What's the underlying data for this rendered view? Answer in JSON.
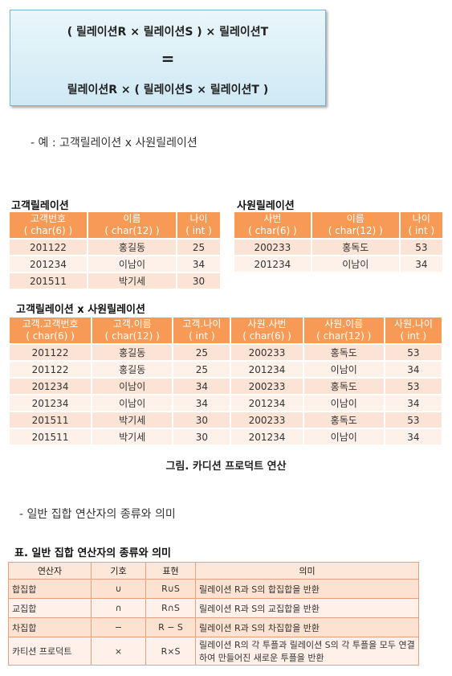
{
  "formula": {
    "line1": "( 릴레이션R × 릴레이션S ) × 릴레이션T",
    "equals": "=",
    "line3": "릴레이션R × ( 릴레이션S  × 릴레이션T )"
  },
  "example_note": "- 예 : 고객릴레이션 x 사원릴레이션",
  "customer": {
    "title": "고객릴레이션",
    "headers": [
      {
        "name": "고객번호",
        "type": "( char(6) )"
      },
      {
        "name": "이름",
        "type": "( char(12) )"
      },
      {
        "name": "나이",
        "type": "( int )"
      }
    ],
    "rows": [
      [
        "201122",
        "홍길동",
        "25"
      ],
      [
        "201234",
        "이남이",
        "34"
      ],
      [
        "201511",
        "박기세",
        "30"
      ]
    ]
  },
  "employee": {
    "title": "사원릴레이션",
    "headers": [
      {
        "name": "사번",
        "type": "( char(6) )"
      },
      {
        "name": "이름",
        "type": "( char(12) )"
      },
      {
        "name": "나이",
        "type": "( int )"
      }
    ],
    "rows": [
      [
        "200233",
        "홍독도",
        "53"
      ],
      [
        "201234",
        "이남이",
        "34"
      ]
    ]
  },
  "product": {
    "title": "고객릴레이션  x 사원릴레이션",
    "headers": [
      {
        "name": "고객.고객번호",
        "type": "( char(6) )"
      },
      {
        "name": "고객.이름",
        "type": "( char(12) )"
      },
      {
        "name": "고객.나이",
        "type": "( int )"
      },
      {
        "name": "사원.사번",
        "type": "( char(6) )"
      },
      {
        "name": "사원.이름",
        "type": "( char(12) )"
      },
      {
        "name": "사원.나이",
        "type": "( int )"
      }
    ],
    "rows": [
      [
        "201122",
        "홍길동",
        "25",
        "200233",
        "홍독도",
        "53"
      ],
      [
        "201122",
        "홍길동",
        "25",
        "201234",
        "이남이",
        "34"
      ],
      [
        "201234",
        "이남이",
        "34",
        "200233",
        "홍독도",
        "53"
      ],
      [
        "201234",
        "이남이",
        "34",
        "201234",
        "이남이",
        "34"
      ],
      [
        "201511",
        "박기세",
        "30",
        "200233",
        "홍독도",
        "53"
      ],
      [
        "201511",
        "박기세",
        "30",
        "201234",
        "이남이",
        "34"
      ]
    ]
  },
  "figure_caption": "그림. 카디션 프로덕트 연산",
  "set_note": "- 일반 집합 연산자의 종류와 의미",
  "table4": {
    "title": "표. 일반 집합 연산자의 종류와 의미",
    "headers": [
      "연산자",
      "기호",
      "표현",
      "의미"
    ],
    "rows": [
      [
        "합집합",
        "∪",
        "R∪S",
        "릴레이션 R과 S의 합집합을 반환"
      ],
      [
        "교집합",
        "∩",
        "R∩S",
        "릴레이션 R과 S의 교집합을 반환"
      ],
      [
        "차집합",
        "−",
        "R − S",
        "릴레이션 R과 S의 차집합을 반환"
      ],
      [
        "카티션 프로덕트",
        "×",
        "R×S",
        "릴레이션 R의 각 투플과 릴레이션 S의 각 투플을 모두 연결하여 만들어진 새로운 투플을 반환"
      ]
    ]
  }
}
